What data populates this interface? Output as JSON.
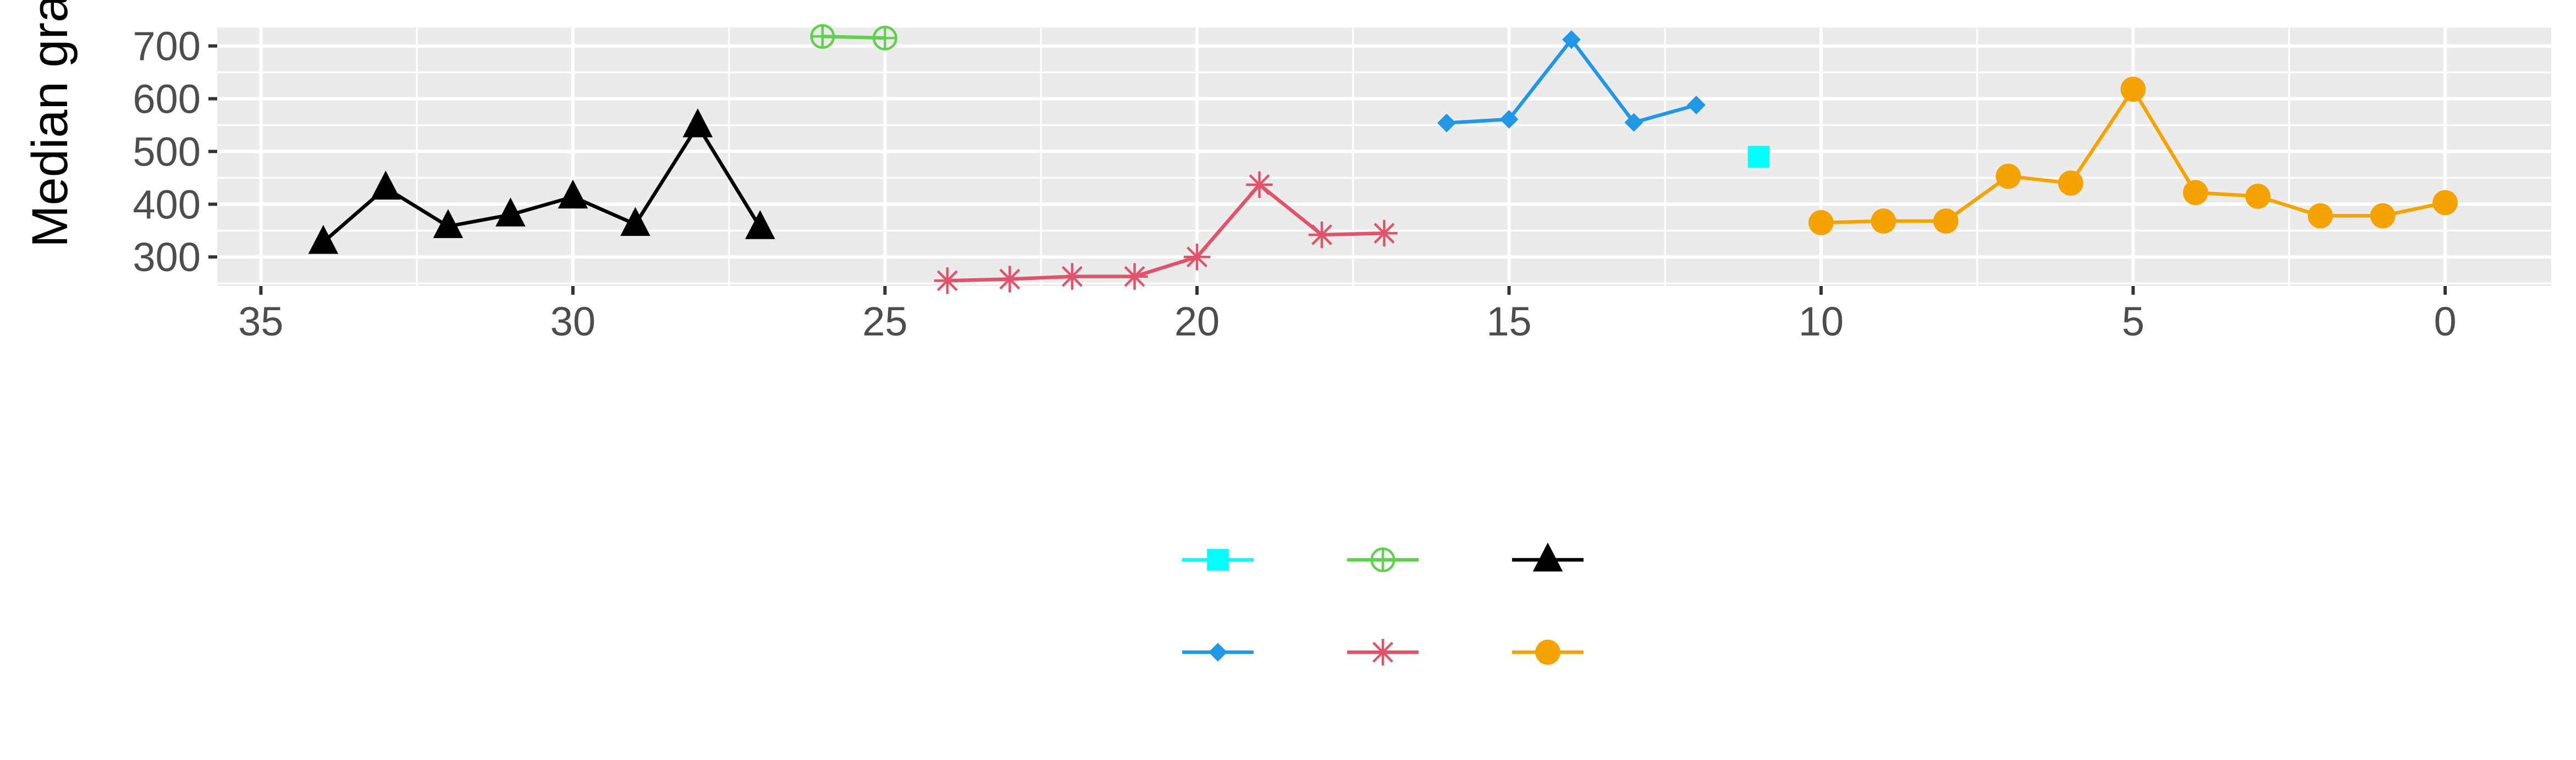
{
  "chart_data": {
    "type": "line",
    "title": "",
    "xlabel": "",
    "ylabel": "Median grain size",
    "x_reversed": true,
    "xlim": [
      35.7,
      -1.7
    ],
    "ylim": [
      245,
      735
    ],
    "x_ticks": [
      "35",
      "30",
      "25",
      "20",
      "15",
      "10",
      "5",
      "0"
    ],
    "y_ticks": [
      "300",
      "400",
      "500",
      "600",
      "700"
    ],
    "grid": true,
    "panel_background": "#EBEBEB",
    "legend_position": "bottom",
    "series": [
      {
        "color": "#000000",
        "marker": "triangle",
        "x": [
          34,
          33,
          32,
          31,
          30,
          29,
          28,
          27
        ],
        "values": [
          328,
          431,
          358,
          380,
          414,
          362,
          549,
          356
        ]
      },
      {
        "color": "#61D04F",
        "marker": "circle-plus",
        "x": [
          26,
          25
        ],
        "values": [
          718,
          715
        ]
      },
      {
        "color": "#DF536B",
        "marker": "asterisk",
        "x": [
          24,
          23,
          22,
          21,
          20,
          19,
          18,
          17
        ],
        "values": [
          255,
          258,
          263,
          263,
          300,
          437,
          342,
          345
        ]
      },
      {
        "color": "#2297E6",
        "marker": "diamond",
        "x": [
          16,
          15,
          14,
          13,
          12
        ],
        "values": [
          554,
          561,
          712,
          555,
          588
        ]
      },
      {
        "color": "#00FFFF",
        "marker": "square",
        "x": [
          11
        ],
        "values": [
          490
        ]
      },
      {
        "color": "#F5A300",
        "marker": "circle",
        "x": [
          10,
          9,
          8,
          7,
          6,
          5,
          4,
          3,
          2,
          1,
          0
        ],
        "values": [
          365,
          368,
          368,
          453,
          440,
          618,
          422,
          415,
          378,
          378,
          403
        ]
      }
    ],
    "legend": [
      {
        "color": "#00FFFF",
        "marker": "square"
      },
      {
        "color": "#61D04F",
        "marker": "circle-plus"
      },
      {
        "color": "#000000",
        "marker": "triangle"
      },
      {
        "color": "#2297E6",
        "marker": "diamond"
      },
      {
        "color": "#DF536B",
        "marker": "asterisk"
      },
      {
        "color": "#F5A300",
        "marker": "circle"
      }
    ]
  }
}
